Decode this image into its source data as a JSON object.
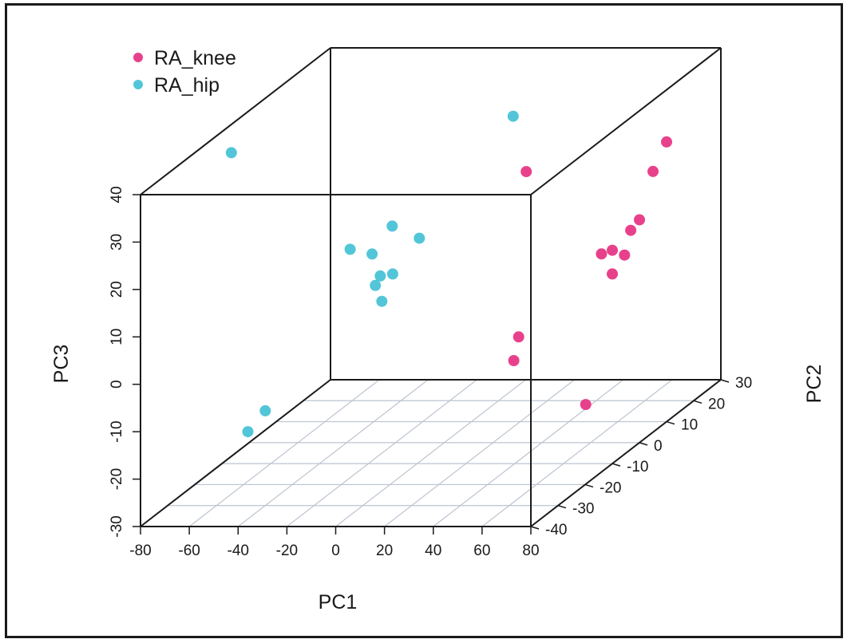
{
  "chart_data": {
    "type": "scatter",
    "projection": "3d",
    "xlabel": "PC1",
    "ylabel": "PC2",
    "zlabel": "PC3",
    "xlim": [
      -80,
      80
    ],
    "ylim": [
      -40,
      30
    ],
    "zlim": [
      -30,
      40
    ],
    "x_ticks": [
      "-80",
      "-60",
      "-40",
      "-20",
      "0",
      "20",
      "40",
      "60",
      "80"
    ],
    "y_ticks": [
      "-40",
      "-30",
      "-20",
      "-10",
      "0",
      "10",
      "20",
      "30"
    ],
    "z_ticks": [
      "-30",
      "-20",
      "-10",
      "0",
      "10",
      "20",
      "30",
      "40"
    ],
    "grid": "xy-floor",
    "legend": "top-left",
    "series": [
      {
        "name": "RA_knee",
        "color": "#e8418c",
        "points": [
          [
            8,
            23,
            17
          ],
          [
            73,
            -40,
            5
          ],
          [
            75,
            -40,
            10
          ],
          [
            78,
            -18,
            -14
          ],
          [
            80,
            -10,
            10
          ],
          [
            80,
            -10,
            15
          ],
          [
            85,
            -10,
            14
          ],
          [
            82,
            -5,
            17
          ],
          [
            80,
            -14,
            16
          ],
          [
            80,
            0,
            17
          ],
          [
            80,
            5,
            25
          ],
          [
            80,
            10,
            29
          ]
        ]
      },
      {
        "name": "RA_hip",
        "color": "#52c6d8",
        "points": [
          [
            -65,
            -20,
            40
          ],
          [
            6,
            20,
            30
          ],
          [
            -33,
            -5,
            13
          ],
          [
            -24,
            -5,
            12
          ],
          [
            -18,
            -3,
            17
          ],
          [
            -6,
            -20,
            12
          ],
          [
            -4,
            -20,
            14
          ],
          [
            -8,
            -2,
            14
          ],
          [
            -10,
            -10,
            10
          ],
          [
            -10,
            -14,
            6
          ],
          [
            -40,
            -30,
            -10
          ],
          [
            -36,
            -40,
            -10
          ]
        ]
      }
    ]
  }
}
